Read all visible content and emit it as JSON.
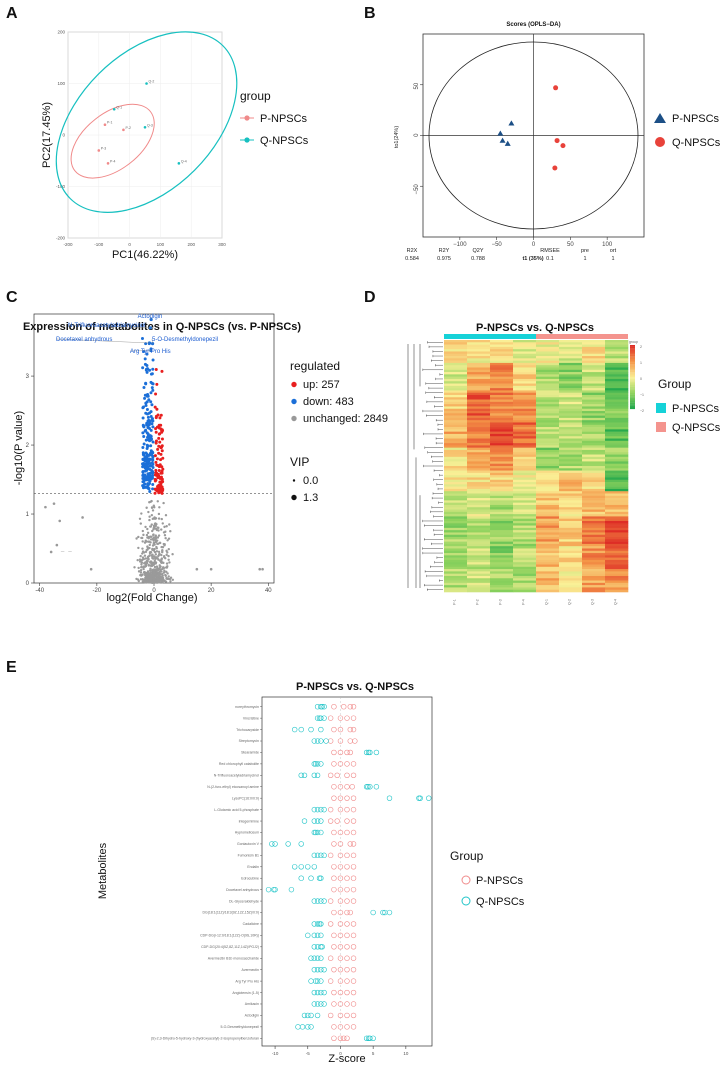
{
  "panels": [
    "A",
    "B",
    "C",
    "D",
    "E"
  ],
  "chart_data": [
    {
      "id": "A",
      "type": "scatter",
      "title": "",
      "xlabel": "PC1(46.22%)",
      "ylabel": "PC2(17.45%)",
      "xlim": [
        -200,
        300
      ],
      "ylim": [
        -200,
        200
      ],
      "x_ticks": [
        "-200",
        "-100",
        "0",
        "100",
        "200",
        "300"
      ],
      "y_ticks": [
        "200",
        "100",
        "0",
        "-100",
        "-200"
      ],
      "legend_title": "group",
      "series": [
        {
          "name": "P-NPSCs",
          "color": "#f08a8a",
          "points": [
            {
              "x": -80,
              "y": 20,
              "label": "P-1"
            },
            {
              "x": -20,
              "y": 10,
              "label": "P-2"
            },
            {
              "x": -100,
              "y": -30,
              "label": "P-3"
            },
            {
              "x": -70,
              "y": -55,
              "label": "P-4"
            }
          ]
        },
        {
          "name": "Q-NPSCs",
          "color": "#17c0c0",
          "points": [
            {
              "x": -50,
              "y": 50,
              "label": "Q-1"
            },
            {
              "x": 55,
              "y": 100,
              "label": "Q-2"
            },
            {
              "x": 50,
              "y": 15,
              "label": "Q-3"
            },
            {
              "x": 160,
              "y": -55,
              "label": "Q-4"
            }
          ]
        }
      ]
    },
    {
      "id": "B",
      "type": "scatter",
      "title": "Scores (OPLS−DA)",
      "xlabel": "t1 (35%)",
      "ylabel": "to1(24%)",
      "xlim": [
        -150,
        150
      ],
      "ylim": [
        -100,
        100
      ],
      "x_ticks": [
        "−100",
        "−50",
        "0",
        "50",
        "100"
      ],
      "y_ticks": [
        "50",
        "0",
        "−50"
      ],
      "series": [
        {
          "name": "P-NPSCs",
          "color": "#1c4f86",
          "marker": "triangle",
          "points": [
            {
              "x": -30,
              "y": 12
            },
            {
              "x": -45,
              "y": 2
            },
            {
              "x": -42,
              "y": -5
            },
            {
              "x": -35,
              "y": -8
            }
          ]
        },
        {
          "name": "Q-NPSCs",
          "color": "#e8423a",
          "marker": "circle",
          "points": [
            {
              "x": 30,
              "y": 47
            },
            {
              "x": 32,
              "y": -5
            },
            {
              "x": 40,
              "y": -10
            },
            {
              "x": 29,
              "y": -32
            }
          ]
        }
      ],
      "stats": {
        "headers": [
          "R2X",
          "R2Y",
          "Q2Y",
          "RMSEE",
          "pre",
          "ort"
        ],
        "values": [
          "0.584",
          "0.975",
          "0.788",
          "0.1",
          "1",
          "1"
        ]
      }
    },
    {
      "id": "C",
      "type": "scatter",
      "title": "Expression of metabolites in Q-NPSCs (vs. P-NPSCs)",
      "xlabel": "log2(Fold Change)",
      "ylabel": "-log10(P value)",
      "xlim": [
        -42,
        42
      ],
      "ylim": [
        0,
        3.9
      ],
      "x_ticks": [
        "-40",
        "-20",
        "0",
        "20",
        "40"
      ],
      "y_ticks": [
        "3",
        "2",
        "1",
        "0"
      ],
      "threshold": 1.3,
      "legend_title": "regulated",
      "legend": [
        {
          "label": "up: 257",
          "color": "#e81f1f"
        },
        {
          "label": "down: 483",
          "color": "#1b6fd8"
        },
        {
          "label": "unchanged: 2849",
          "color": "#999999"
        }
      ],
      "vip_title": "VIP",
      "vip_legend": [
        "0.0",
        "1.3"
      ],
      "annotations": [
        {
          "label": "Actodigin",
          "x": -1,
          "y": 3.82
        },
        {
          "label": "N-Trifluoroacetyladriamycinol",
          "x": -1.3,
          "y": 3.7
        },
        {
          "label": "Docetaxel anhydrous",
          "x": -1.6,
          "y": 3.48
        },
        {
          "label": "5-O-Desmethyldonepezil",
          "x": -0.5,
          "y": 3.47
        },
        {
          "label": "Arg Tyr Pro His",
          "x": -1.1,
          "y": 3.37
        }
      ],
      "outlier_labels": [
        "—",
        "—"
      ]
    },
    {
      "id": "D",
      "type": "heatmap",
      "title": "P-NPSCs vs. Q-NPSCs",
      "legend_title": "Group",
      "legend": [
        {
          "label": "P-NPSCs",
          "color": "#16d2d8"
        },
        {
          "label": "Q-NPSCs",
          "color": "#f4948e"
        }
      ],
      "color_scale_title": "group",
      "color_scale": [
        "2",
        "1",
        "0",
        "−1",
        "−2"
      ],
      "columns": [
        "P-1",
        "P-2",
        "P-3",
        "P-4",
        "Q-1",
        "Q-2",
        "Q-3",
        "Q-4"
      ],
      "blocks": [
        {
          "rows": [
            0,
            0.09
          ],
          "values": [
            0.3,
            0.1,
            0.2,
            -0.2,
            -0.1,
            -0.3,
            0.2,
            -0.5
          ]
        },
        {
          "rows": [
            0.09,
            0.2
          ],
          "values": [
            -0.3,
            0.8,
            1.1,
            0.3,
            -0.7,
            -1.0,
            -0.5,
            -1.6
          ]
        },
        {
          "rows": [
            0.2,
            0.33
          ],
          "values": [
            0.4,
            1.5,
            1.2,
            1.0,
            -0.6,
            -0.4,
            -0.9,
            -1.2
          ]
        },
        {
          "rows": [
            0.33,
            0.43
          ],
          "values": [
            0.7,
            1.3,
            1.7,
            1.4,
            -0.6,
            -0.5,
            -0.8,
            -1.4
          ]
        },
        {
          "rows": [
            0.43,
            0.52
          ],
          "values": [
            0.2,
            0.6,
            0.9,
            0.4,
            -1.0,
            -0.7,
            -0.5,
            -0.9
          ]
        },
        {
          "rows": [
            0.52,
            0.6
          ],
          "values": [
            0.1,
            0.2,
            0.3,
            0.0,
            0.2,
            0.5,
            0.2,
            -1.5
          ]
        },
        {
          "rows": [
            0.6,
            0.7
          ],
          "values": [
            -0.6,
            -0.3,
            -0.7,
            -0.4,
            0.5,
            0.3,
            0.5,
            0.6
          ]
        },
        {
          "rows": [
            0.7,
            0.82
          ],
          "values": [
            -0.8,
            -0.6,
            -0.9,
            -0.7,
            0.9,
            0.4,
            1.2,
            1.8
          ]
        },
        {
          "rows": [
            0.82,
            0.91
          ],
          "values": [
            -0.9,
            -0.5,
            -1.1,
            -0.6,
            0.6,
            0.3,
            1.0,
            1.4
          ]
        },
        {
          "rows": [
            0.91,
            1.0
          ],
          "values": [
            -0.6,
            -0.4,
            -0.8,
            -0.7,
            0.6,
            0.2,
            0.8,
            1.0
          ]
        }
      ]
    },
    {
      "id": "E",
      "type": "scatter",
      "title": "P-NPSCs vs. Q-NPSCs",
      "xlabel": "Z-score",
      "ylabel": "Metabolites",
      "xlim": [
        -12,
        14
      ],
      "x_ticks": [
        "-10",
        "-5",
        "0",
        "5",
        "10"
      ],
      "legend_title": "Group",
      "legend": [
        {
          "label": "P-NPSCs",
          "color": "#f08a8a"
        },
        {
          "label": "Q-NPSCs",
          "color": "#1fc4c8"
        }
      ],
      "metabolites": [
        "noreythromycin",
        "Vincristine",
        "Trichocarpside",
        "Streptomycin",
        "Stearamide",
        "Red chlorophyll catabolite",
        "N-Trifluoroacetyladriamycinol",
        "N-(2-furo-ethyl) eicosanoyl amine",
        "LysoPC(16:0/0:0)",
        "L-Glutamic acid 5-phosphate",
        "Integerrimine",
        "Hypromellosum",
        "Goniautoxin V",
        "Fumonisin B1",
        "Endalin",
        "Edrocubine",
        "Docetaxel anhydrous",
        "DL-Glyceraldehyde",
        "DG(18:1(11Z)/18:3(9Z,12Z,15Z)/0:0)",
        "Cadalicine",
        "CDP-DG(i-12:0/18:1(12Z)-O(9S,10R))",
        "CDP-DG(20:4(5Z,8Z,11Z,14Z)/PGJ2)",
        "Avermectin B1b monosaccharide",
        "Avermectin",
        "Arg Tyr Pro His",
        "Angiotensin (1-5)",
        "Amikacin",
        "Actodigin",
        "5-O-Desmethyldonepezil",
        "(S)-2,3-Dihydro-5-hydroxy-3-(hydroxyacetyl)-2-isopropenylbenzofuran"
      ],
      "q_values": [
        [
          -3,
          -3.5,
          -2.8,
          -2.5
        ],
        [
          -3.5,
          -3,
          -2.5,
          -3.2
        ],
        [
          -7,
          -6,
          -4.5,
          -3
        ],
        [
          -4,
          -3.5,
          -3,
          -2.2
        ],
        [
          4,
          4.5,
          5.5,
          4.3
        ],
        [
          -4,
          -3.5,
          -3,
          -3.8
        ],
        [
          -6,
          -5.5,
          -3.5,
          -4
        ],
        [
          4,
          4.5,
          5.5,
          4.2
        ],
        [
          7.5,
          12,
          13.5,
          12.2
        ],
        [
          -4,
          -3,
          -3.5,
          -2.5
        ],
        [
          -5.5,
          -4,
          -3,
          -3.5
        ],
        [
          -3.5,
          -4,
          -3,
          -3.8
        ],
        [
          -10.5,
          -8,
          -6,
          -10
        ],
        [
          -4,
          -3.5,
          -2.5,
          -3
        ],
        [
          -7,
          -6,
          -5,
          -4
        ],
        [
          -6,
          -4.5,
          -3,
          -3.2
        ],
        [
          -10,
          -11,
          -7.5,
          -10.2
        ],
        [
          -4,
          -3.5,
          -3,
          -2.5
        ],
        [
          5,
          6.5,
          7.5,
          6.8
        ],
        [
          -3.5,
          -4,
          -3,
          -3.2
        ],
        [
          -5,
          -4,
          -3,
          -3.5
        ],
        [
          -4,
          -3.5,
          -3,
          -2.8
        ],
        [
          -4.5,
          -3.5,
          -3,
          -4
        ],
        [
          -4,
          -3.5,
          -3,
          -2.5
        ],
        [
          -4.5,
          -3.5,
          -3,
          -3.8
        ],
        [
          -4,
          -3.5,
          -2.5,
          -3
        ],
        [
          -4,
          -3.5,
          -3,
          -2.5
        ],
        [
          -5.5,
          -4.5,
          -3.5,
          -5
        ],
        [
          -6.5,
          -5,
          -4.5,
          -5.8
        ],
        [
          4,
          5,
          4.5,
          4.3
        ]
      ],
      "p_values": [
        [
          -1,
          0.5,
          1.5,
          2
        ],
        [
          -1.5,
          0,
          1,
          2
        ],
        [
          -1,
          0,
          1.5,
          2
        ],
        [
          -1.5,
          0,
          1.5,
          2.2
        ],
        [
          -1,
          0,
          1,
          1.5
        ],
        [
          -1,
          0,
          1,
          2
        ],
        [
          -1.5,
          -0.5,
          1,
          2
        ],
        [
          -1,
          0,
          1,
          1.8
        ],
        [
          -1,
          0,
          1,
          2
        ],
        [
          -1.5,
          0,
          1,
          2
        ],
        [
          -1.5,
          -0.5,
          1,
          2
        ],
        [
          -1,
          0,
          1,
          2
        ],
        [
          -1,
          0,
          1.5,
          2
        ],
        [
          -1.5,
          0,
          1,
          2
        ],
        [
          -1,
          0,
          1,
          2
        ],
        [
          -1,
          0,
          1,
          2
        ],
        [
          -1,
          0,
          1,
          2
        ],
        [
          -1.5,
          0,
          1,
          2
        ],
        [
          -1,
          0,
          1,
          1.5
        ],
        [
          -1.5,
          0,
          1,
          2
        ],
        [
          -1,
          0,
          1,
          2
        ],
        [
          -1,
          0,
          1,
          2
        ],
        [
          -1.5,
          0,
          1,
          2
        ],
        [
          -1,
          0,
          1,
          2
        ],
        [
          -1.5,
          0,
          1,
          2
        ],
        [
          -1,
          0,
          1,
          2
        ],
        [
          -1,
          0,
          1,
          2
        ],
        [
          -1.5,
          0,
          1,
          2
        ],
        [
          -1,
          0,
          1,
          2
        ],
        [
          -1,
          0,
          0.5,
          1
        ]
      ]
    }
  ]
}
